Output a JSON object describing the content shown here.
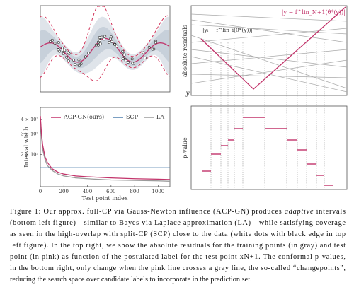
{
  "chart_data": {
    "type": "line",
    "x_label": "Test point index",
    "y_label": "Interval width",
    "x": [
      0,
      10,
      20,
      40,
      60,
      100,
      150,
      200,
      300,
      400,
      600,
      800,
      1000,
      1100
    ],
    "series": [
      {
        "name": "ACP-GN(ours)",
        "color": "#c2336a",
        "values": [
          4300,
          3000,
          2400,
          1900,
          1700,
          1500,
          1400,
          1350,
          1300,
          1280,
          1250,
          1230,
          1220,
          1210
        ]
      },
      {
        "name": "SCP",
        "color": "#4f7fae",
        "values": [
          1530,
          1530,
          1530,
          1530,
          1530,
          1530,
          1530,
          1530,
          1530,
          1530,
          1530,
          1530,
          1530,
          1530
        ]
      },
      {
        "name": "LA",
        "color": "#9a9a9a",
        "values": [
          4100,
          2800,
          2200,
          1800,
          1600,
          1450,
          1350,
          1300,
          1250,
          1230,
          1200,
          1190,
          1180,
          1170
        ]
      }
    ],
    "xlim": [
      0,
      1100
    ],
    "xticks": [
      0,
      200,
      400,
      600,
      800,
      1000
    ],
    "ylim": [
      1050,
      5100
    ],
    "log_y": true,
    "yticks": [
      {
        "value": 2000,
        "label": "2 × 10³"
      },
      {
        "value": 3000,
        "label": "3 × 10³"
      },
      {
        "value": 4000,
        "label": "4 × 10³"
      }
    ]
  },
  "panels": {
    "residuals": {
      "y_label": "absolute residuals",
      "x_label": "y",
      "test_label": "|y − f^lin_N+1(θ̂*(y))|",
      "train_label": "|yᵢ − f^lin_i(θ̂*(y))|"
    },
    "pvalues": {
      "y_label": "p-value"
    }
  },
  "caption": {
    "lines": [
      [
        "Figure 1: Our approx. full-CP via Gauss-Newton influence (ACP-GN) produces ",
        "adaptive",
        " intervals"
      ],
      [
        "(bottom left figure)—similar to Bayes via Laplace approximation (LA)—while satisfying coverage"
      ],
      [
        "as seen in the high-overlap with split-CP (SCP) close to the data (white dots with black edge in top"
      ],
      [
        "left figure). In the top right, we show the absolute residuals for the training points (in gray) and test"
      ],
      [
        "point (in pink) as function of the postulated label for the test point xN+1. The conformal p-values,"
      ],
      [
        "in the bottom right, only change when the pink line crosses a gray line, the so-called “changepoints”,"
      ],
      [
        "reducing the search space over candidate labels to incorporate in the prediction set."
      ]
    ]
  }
}
